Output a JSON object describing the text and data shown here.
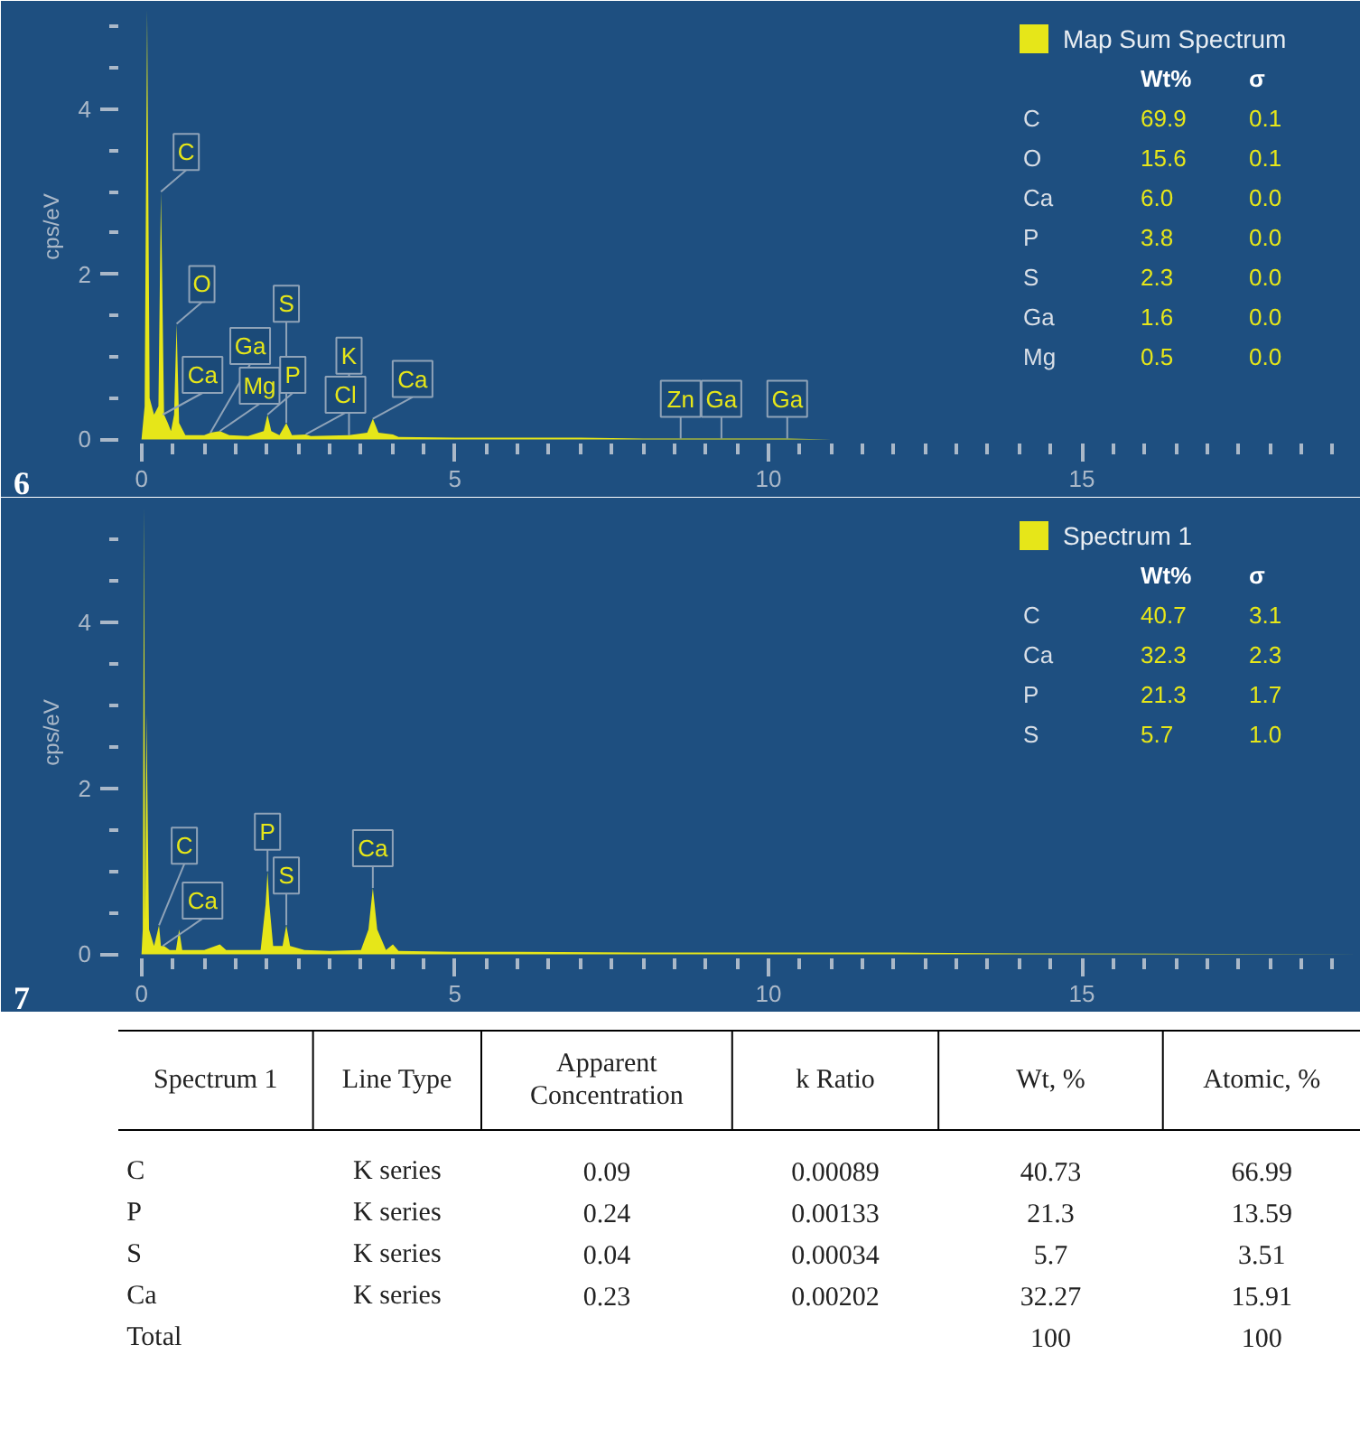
{
  "chart_data": [
    {
      "type": "area",
      "ylabel": "cps/eV",
      "legend": "top right",
      "xlim": [
        -0.37,
        19.45
      ],
      "ylim": [
        -0.05,
        5.2
      ],
      "xticks": [
        0,
        {
          "value": 0.5,
          "label": null
        },
        {
          "value": 1,
          "label": null
        },
        {
          "value": 1.5,
          "label": null
        },
        {
          "value": 2,
          "label": null
        },
        {
          "value": 2.5,
          "label": null
        },
        {
          "value": 3,
          "label": null
        },
        {
          "value": 3.5,
          "label": null
        },
        {
          "value": 4,
          "label": null
        },
        {
          "value": 4.5,
          "label": null
        },
        5,
        {
          "value": 5.5,
          "label": null
        },
        {
          "value": 6,
          "label": null
        },
        {
          "value": 6.5,
          "label": null
        },
        {
          "value": 7,
          "label": null
        },
        {
          "value": 7.5,
          "label": null
        },
        {
          "value": 8,
          "label": null
        },
        {
          "value": 8.5,
          "label": null
        },
        {
          "value": 9,
          "label": null
        },
        {
          "value": 9.5,
          "label": null
        },
        10,
        {
          "value": 10.5,
          "label": null
        },
        {
          "value": 11,
          "label": null
        },
        {
          "value": 11.5,
          "label": null
        },
        {
          "value": 12,
          "label": null
        },
        {
          "value": 12.5,
          "label": null
        },
        {
          "value": 13,
          "label": null
        },
        {
          "value": 13.5,
          "label": null
        },
        {
          "value": 14,
          "label": null
        },
        {
          "value": 14.5,
          "label": null
        },
        15,
        {
          "value": 15.5,
          "label": null
        },
        {
          "value": 16,
          "label": null
        },
        {
          "value": 16.5,
          "label": null
        },
        {
          "value": 17,
          "label": null
        },
        {
          "value": 17.5,
          "label": null
        },
        {
          "value": 18,
          "label": null
        },
        {
          "value": 18.5,
          "label": null
        },
        {
          "value": 19,
          "label": null
        }
      ],
      "yticks": [
        0,
        {
          "value": 0.5,
          "label": null
        },
        {
          "value": 1,
          "label": null
        },
        {
          "value": 1.5,
          "label": null
        },
        2,
        {
          "value": 2.5,
          "label": null
        },
        {
          "value": 3,
          "label": null
        },
        {
          "value": 3.5,
          "label": null
        },
        4,
        {
          "value": 4.5,
          "label": null
        },
        {
          "value": 5,
          "label": null
        }
      ],
      "series": [
        {
          "name": "Map Sum Spectrum",
          "color": "#e6e619",
          "x": [
            0,
            0.05,
            0.09,
            0.13,
            0.2,
            0.27,
            0.31,
            0.36,
            0.42,
            0.47,
            0.52,
            0.56,
            0.6,
            0.7,
            1.0,
            1.1,
            1.25,
            1.4,
            1.7,
            1.95,
            2.01,
            2.07,
            2.2,
            2.31,
            2.4,
            2.62,
            2.7,
            3.31,
            3.6,
            3.69,
            3.78,
            4.01,
            4.1,
            5,
            6,
            7,
            8,
            8.6,
            9.25,
            10.3,
            11,
            19.45
          ],
          "values": [
            0,
            0.4,
            5.2,
            0.5,
            0.3,
            0.4,
            3.0,
            0.3,
            0.2,
            0.1,
            0.3,
            1.4,
            0.2,
            0.05,
            0.05,
            0.08,
            0.1,
            0.05,
            0.04,
            0.1,
            0.3,
            0.1,
            0.05,
            0.2,
            0.05,
            0.06,
            0.04,
            0.05,
            0.08,
            0.25,
            0.08,
            0.06,
            0.03,
            0.02,
            0.02,
            0.02,
            0.01,
            0.01,
            0.01,
            0.01,
            0,
            0
          ]
        }
      ],
      "annotations": [
        "6",
        "Wt% σ",
        "C 69.9 0.1",
        "O 15.6 0.1",
        "Ca 6.0 0.0",
        "P 3.8 0.0",
        "S 2.3 0.0",
        "Ga 1.6 0.0",
        "Mg 0.5 0.0",
        {
          "text": "Ca",
          "x": 0.34,
          "y": 0.3
        },
        {
          "text": "C",
          "x": 0.31,
          "y": 3.0
        },
        {
          "text": "O",
          "x": 0.56,
          "y": 1.4
        },
        {
          "text": "Mg",
          "x": 1.25,
          "y": 0.1
        },
        {
          "text": "Ga",
          "x": 1.1,
          "y": 0.08
        },
        {
          "text": "P",
          "x": 2.01,
          "y": 0.3
        },
        {
          "text": "Cl",
          "x": 2.62,
          "y": 0.06
        },
        {
          "text": "S",
          "x": 2.31,
          "y": 0.2
        },
        {
          "text": "K",
          "x": 3.31,
          "y": 0.05
        },
        {
          "text": "Ca",
          "x": 3.69,
          "y": 0.25
        },
        {
          "text": "Zn",
          "x": 8.6,
          "y": 0.01
        },
        {
          "text": "Ga",
          "x": 9.25,
          "y": 0.01
        },
        {
          "text": "Ga",
          "x": 10.3,
          "y": 0.01
        }
      ]
    },
    {
      "type": "area",
      "ylabel": "cps/eV",
      "legend": "top right",
      "xlim": [
        -0.37,
        19.45
      ],
      "ylim": [
        -0.05,
        5.4
      ],
      "xticks": [
        0,
        {
          "value": 0.5,
          "label": null
        },
        {
          "value": 1,
          "label": null
        },
        {
          "value": 1.5,
          "label": null
        },
        {
          "value": 2,
          "label": null
        },
        {
          "value": 2.5,
          "label": null
        },
        {
          "value": 3,
          "label": null
        },
        {
          "value": 3.5,
          "label": null
        },
        {
          "value": 4,
          "label": null
        },
        {
          "value": 4.5,
          "label": null
        },
        5,
        {
          "value": 5.5,
          "label": null
        },
        {
          "value": 6,
          "label": null
        },
        {
          "value": 6.5,
          "label": null
        },
        {
          "value": 7,
          "label": null
        },
        {
          "value": 7.5,
          "label": null
        },
        {
          "value": 8,
          "label": null
        },
        {
          "value": 8.5,
          "label": null
        },
        {
          "value": 9,
          "label": null
        },
        {
          "value": 9.5,
          "label": null
        },
        10,
        {
          "value": 10.5,
          "label": null
        },
        {
          "value": 11,
          "label": null
        },
        {
          "value": 11.5,
          "label": null
        },
        {
          "value": 12,
          "label": null
        },
        {
          "value": 12.5,
          "label": null
        },
        {
          "value": 13,
          "label": null
        },
        {
          "value": 13.5,
          "label": null
        },
        {
          "value": 14,
          "label": null
        },
        {
          "value": 14.5,
          "label": null
        },
        15,
        {
          "value": 15.5,
          "label": null
        },
        {
          "value": 16,
          "label": null
        },
        {
          "value": 16.5,
          "label": null
        },
        {
          "value": 17,
          "label": null
        },
        {
          "value": 17.5,
          "label": null
        },
        {
          "value": 18,
          "label": null
        },
        {
          "value": 18.5,
          "label": null
        },
        {
          "value": 19,
          "label": null
        }
      ],
      "yticks": [
        0,
        {
          "value": 0.5,
          "label": null
        },
        {
          "value": 1,
          "label": null
        },
        {
          "value": 1.5,
          "label": null
        },
        2,
        {
          "value": 2.5,
          "label": null
        },
        {
          "value": 3,
          "label": null
        },
        {
          "value": 3.5,
          "label": null
        },
        4,
        {
          "value": 4.5,
          "label": null
        },
        {
          "value": 5,
          "label": null
        }
      ],
      "series": [
        {
          "name": "Spectrum 1",
          "color": "#e6e619",
          "x": [
            0,
            0.02,
            0.04,
            0.06,
            0.08,
            0.12,
            0.2,
            0.28,
            0.31,
            0.36,
            0.45,
            0.55,
            0.6,
            0.65,
            1.0,
            1.25,
            1.35,
            1.9,
            1.98,
            2.01,
            2.04,
            2.1,
            2.25,
            2.31,
            2.37,
            2.6,
            3.0,
            3.5,
            3.62,
            3.69,
            3.76,
            3.9,
            4.01,
            4.1,
            5,
            6,
            8,
            10,
            12,
            14,
            19.45
          ],
          "values": [
            0,
            0.3,
            5.4,
            0.4,
            2.9,
            0.3,
            0.1,
            0.35,
            0.1,
            0.1,
            0.05,
            0.05,
            0.3,
            0.05,
            0.05,
            0.12,
            0.05,
            0.05,
            0.6,
            1.0,
            0.6,
            0.1,
            0.1,
            0.35,
            0.1,
            0.05,
            0.04,
            0.05,
            0.3,
            0.8,
            0.3,
            0.05,
            0.12,
            0.04,
            0.03,
            0.03,
            0.02,
            0.02,
            0.02,
            0.01,
            0
          ]
        }
      ],
      "annotations": [
        "7",
        "Wt% σ",
        "C 40.7 3.1",
        "Ca 32.3 2.3",
        "P 21.3 1.7",
        "S 5.7 1.0",
        {
          "text": "Ca",
          "x": 0.34,
          "y": 0.1
        },
        {
          "text": "C",
          "x": 0.28,
          "y": 0.35
        },
        {
          "text": "P",
          "x": 2.01,
          "y": 1.0
        },
        {
          "text": "S",
          "x": 2.31,
          "y": 0.35
        },
        {
          "text": "Ca",
          "x": 3.69,
          "y": 0.8
        }
      ]
    },
    {
      "type": "other",
      "annotations": [
        "Spectrum 1",
        "Line Type",
        "Apparent Concentration",
        "k Ratio",
        "Wt, %",
        "Atomic, %",
        "C",
        "K series",
        "0.09",
        "0.00089",
        "40.73",
        "66.99",
        "P",
        "K series",
        "0.24",
        "0.00133",
        "21.3",
        "13.59",
        "S",
        "K series",
        "0.04",
        "0.00034",
        "5.7",
        "3.51",
        "Ca",
        "K series",
        "0.23",
        "0.00202",
        "32.27",
        "15.91",
        "Total",
        null,
        null,
        null,
        "100",
        "100"
      ]
    }
  ]
}
